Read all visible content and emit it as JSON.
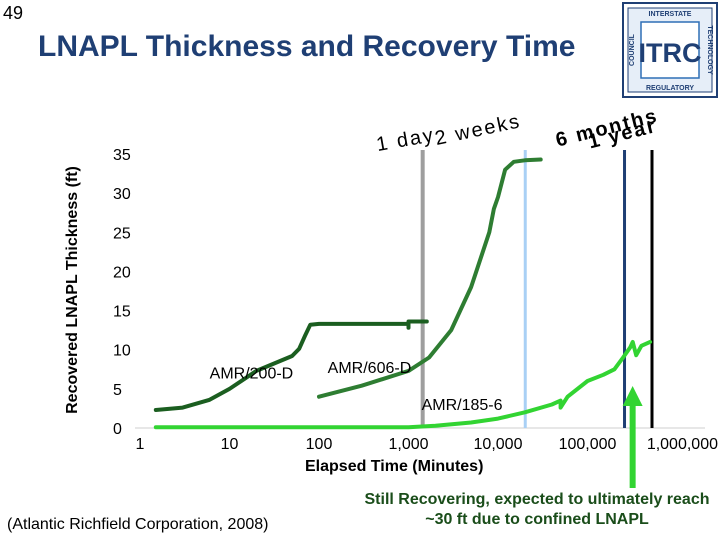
{
  "slide": {
    "number": "49",
    "title": "LNAPL Thickness and Recovery Time"
  },
  "logo": {
    "name": "ITRC",
    "ring_top": "INTERSTATE",
    "ring_right": "TECHNOLOGY",
    "ring_bottom": "REGULATORY",
    "ring_left": "COUNCIL",
    "colors": {
      "navy": "#1f3f74",
      "blue": "#2e6fb5",
      "light": "#e6eef8"
    }
  },
  "chart_data": {
    "type": "line",
    "ylabel": "Recovered LNAPL Thickness (ft)",
    "xlabel": "Elapsed Time (Minutes)",
    "x_scale": "log",
    "xlim": [
      1,
      1000000
    ],
    "ylim": [
      0,
      35
    ],
    "x_tick_labels": [
      {
        "x": 1,
        "label": "1"
      },
      {
        "x": 10,
        "label": "10"
      },
      {
        "x": 100,
        "label": "100"
      },
      {
        "x": 1000,
        "label": "1,000"
      },
      {
        "x": 10000,
        "label": "10,000"
      },
      {
        "x": 100000,
        "label": "100,000"
      },
      {
        "x": 1000000,
        "label": "1,000,000"
      }
    ],
    "y_ticks": [
      0,
      5,
      10,
      15,
      20,
      25,
      30,
      35
    ],
    "series": [
      {
        "name": "AMR/200-D",
        "color": "#1b5e20",
        "label_at": [
          6,
          6.3
        ],
        "points": [
          [
            1.5,
            2.3
          ],
          [
            3,
            2.6
          ],
          [
            6,
            3.6
          ],
          [
            10,
            5.0
          ],
          [
            20,
            7.3
          ],
          [
            50,
            9.2
          ],
          [
            60,
            10.1
          ],
          [
            70,
            11.8
          ],
          [
            80,
            13.2
          ],
          [
            100,
            13.3
          ],
          [
            200,
            13.3
          ],
          [
            500,
            13.3
          ],
          [
            900,
            13.3
          ],
          [
            1000,
            13.3
          ],
          [
            1000,
            12.8
          ],
          [
            1000,
            13.6
          ],
          [
            1600,
            13.6
          ]
        ]
      },
      {
        "name": "AMR/606-D",
        "color": "#2e7d32",
        "label_at": [
          125,
          7.0
        ],
        "points": [
          [
            100,
            4.0
          ],
          [
            300,
            5.4
          ],
          [
            1000,
            7.3
          ],
          [
            1700,
            9.0
          ],
          [
            3000,
            12.5
          ],
          [
            5000,
            18.0
          ],
          [
            8000,
            25.0
          ],
          [
            9000,
            28.0
          ],
          [
            10000,
            29.5
          ],
          [
            12000,
            33.0
          ],
          [
            15000,
            34.0
          ],
          [
            20000,
            34.2
          ],
          [
            30000,
            34.3
          ]
        ]
      },
      {
        "name": "AMR/185-6",
        "color": "#32d432",
        "label_at": [
          1400,
          2.3
        ],
        "points": [
          [
            1.5,
            0.1
          ],
          [
            10,
            0.1
          ],
          [
            100,
            0.1
          ],
          [
            1000,
            0.1
          ],
          [
            2000,
            0.3
          ],
          [
            5000,
            0.7
          ],
          [
            10000,
            1.2
          ],
          [
            20000,
            2.0
          ],
          [
            40000,
            3.0
          ],
          [
            50000,
            3.5
          ],
          [
            50000,
            2.6
          ],
          [
            60000,
            4.0
          ],
          [
            100000,
            6.0
          ],
          [
            150000,
            6.8
          ],
          [
            200000,
            7.5
          ],
          [
            250000,
            9.0
          ],
          [
            300000,
            10.3
          ],
          [
            320000,
            11.0
          ],
          [
            350000,
            9.3
          ],
          [
            400000,
            10.5
          ],
          [
            500000,
            11.0
          ]
        ]
      }
    ],
    "time_markers": [
      {
        "label": "1 day",
        "minutes": 1440,
        "color": "#9e9e9e"
      },
      {
        "label": "2 weeks",
        "minutes": 20160,
        "color": "#a9d0f5"
      },
      {
        "label": "6 months",
        "minutes": 259200,
        "color": "#1f3f74"
      },
      {
        "label": "1 year",
        "minutes": 525600,
        "color": "#000000"
      }
    ],
    "callout": {
      "text": "Still Recovering, expected to ultimately reach ~30 ft due to confined LNAPL",
      "color": "#1a7a1a"
    },
    "citation": "(Atlantic Richfield Corporation, 2008)"
  }
}
